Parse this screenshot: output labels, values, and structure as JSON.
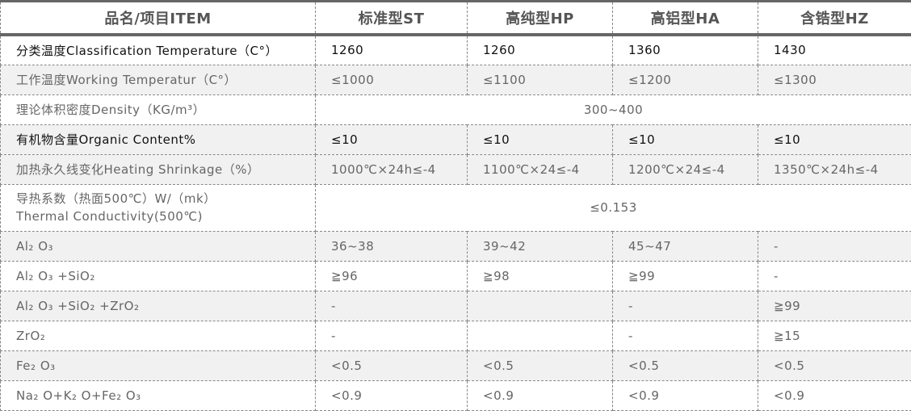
{
  "headers": [
    "品名/项目ITEM",
    "标准型ST",
    "高纯型HP",
    "高铝型HA",
    "含锆型HZ"
  ],
  "rows": [
    {
      "label": "分类温度Classification Temperature（C°）",
      "values": [
        "1260",
        "1260",
        "1360",
        "1430"
      ]
    },
    {
      "label": "工作温度Working Temperatur（C°）",
      "values": [
        "≤1000",
        "≤1100",
        "≤1200",
        "≤1300"
      ]
    },
    {
      "label": "理论体积密度Density（KG/m³）",
      "values": [
        "300~400"
      ]
    },
    {
      "label": "有机物含量Organic Content%",
      "values": [
        "≤10",
        "≤10",
        "≤10",
        "≤10"
      ]
    },
    {
      "label": "加热永久线变化Heating Shrinkage（%）",
      "values": [
        "1000℃×24h≤-4",
        "1100℃×24≤-4",
        "1200℃×24≤-4",
        "1350℃×24h≤-4"
      ]
    },
    {
      "label": "导热系数（热面500℃）W/（mk）",
      "label2": "Thermal Conductivity(500℃)",
      "values": [
        "≤0.153"
      ]
    },
    {
      "label": "Al₂ O₃",
      "values": [
        "36~38",
        "39~42",
        "45~47",
        "-"
      ]
    },
    {
      "label": "Al₂ O₃ +SiO₂",
      "values": [
        "≧96",
        "≧98",
        "≧99",
        "-"
      ]
    },
    {
      "label": "Al₂ O₃ +SiO₂ +ZrO₂",
      "values": [
        "-",
        "",
        "-",
        "≧99"
      ]
    },
    {
      "label": "ZrO₂",
      "values": [
        "-",
        "",
        "-",
        "≧15"
      ]
    },
    {
      "label": "Fe₂ O₃",
      "values": [
        "<0.5",
        "<0.5",
        "<0.5",
        "<0.5"
      ]
    },
    {
      "label": "Na₂ O+K₂ O+Fe₂ O₃",
      "values": [
        "<0.9",
        "<0.9",
        "<0.9",
        "<0.9"
      ]
    }
  ]
}
